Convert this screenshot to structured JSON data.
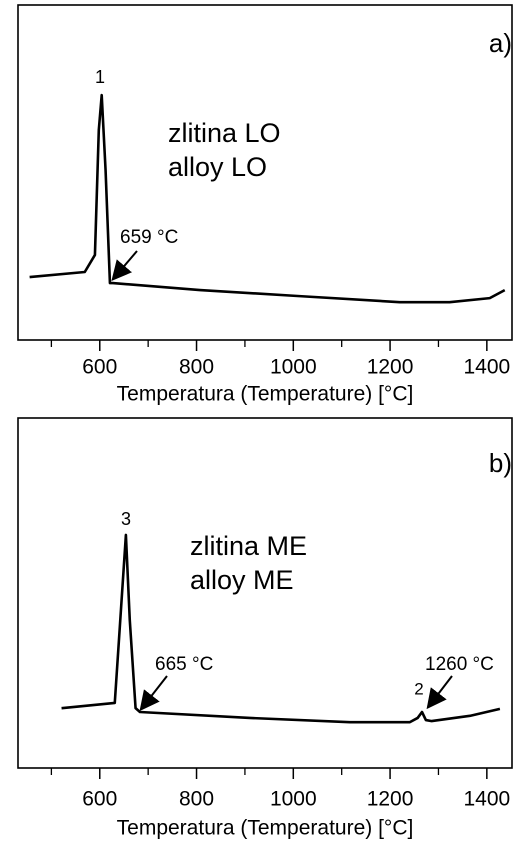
{
  "chart_data": [
    {
      "type": "line",
      "x_label": "Temperatura (Temperature) [°C]",
      "x": [
        455,
        569,
        590,
        598,
        604,
        612,
        621,
        627,
        807,
        1013,
        1220,
        1323,
        1406,
        1437
      ],
      "series": [
        {
          "color": "#000000",
          "values": [
            18.8,
            20.3,
            25.4,
            62.7,
            73.1,
            50.7,
            17,
            17,
            14.9,
            13.1,
            11.3,
            11.3,
            12.5,
            14.9
          ]
        }
      ],
      "xlim": [
        431,
        1452
      ],
      "ylim": [
        0,
        100
      ],
      "xticks": [
        600,
        800,
        1000,
        1200,
        1400
      ],
      "xminorticks": [
        500,
        700,
        900,
        1100,
        1300
      ],
      "annotations": [
        "a)",
        "1",
        "zlitina LO",
        "alloy LO",
        "659 °C"
      ]
    },
    {
      "type": "line",
      "x_label": "Temperatura (Temperature) [°C]",
      "x": [
        521,
        631,
        641,
        654,
        662,
        674,
        683,
        910,
        1117,
        1241,
        1257,
        1266,
        1274,
        1286,
        1365,
        1427
      ],
      "series": [
        {
          "color": "#000000",
          "values": [
            17.1,
            18.6,
            39.4,
            66.6,
            42.3,
            17.1,
            16,
            14.3,
            13.1,
            13.1,
            14.3,
            16,
            13.7,
            13.4,
            14.9,
            16.9
          ]
        }
      ],
      "xlim": [
        431,
        1452
      ],
      "ylim": [
        0,
        100
      ],
      "xticks": [
        600,
        800,
        1000,
        1200,
        1400
      ],
      "xminorticks": [
        500,
        700,
        900,
        1100,
        1300
      ],
      "annotations": [
        "b)",
        "3",
        "zlitina ME",
        "alloy ME",
        "665 °C",
        "2",
        "1260 °C"
      ]
    }
  ]
}
